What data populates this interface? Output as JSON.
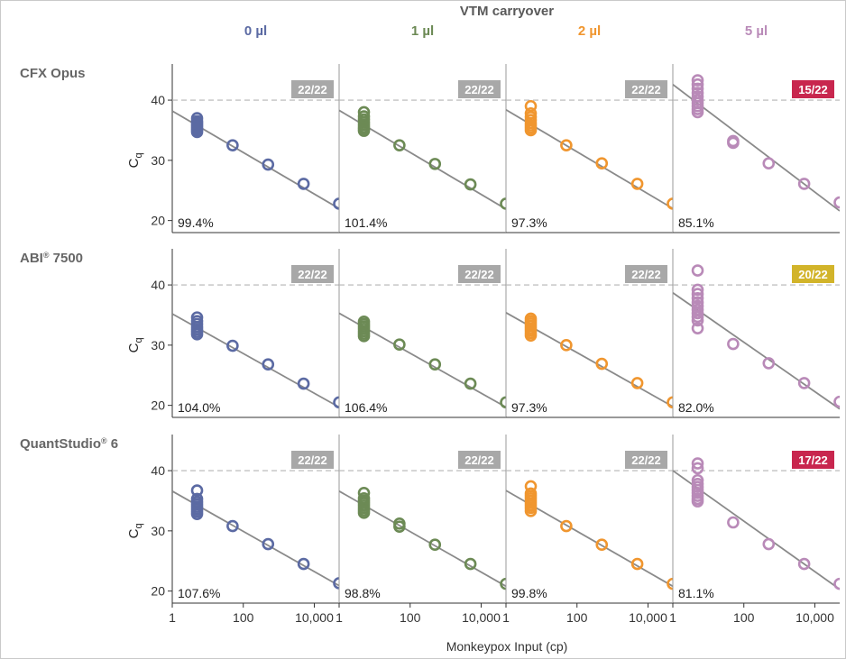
{
  "header": "VTM carryover",
  "x_title": "Monkeypox Input (cp)",
  "y_title_main": "C",
  "y_title_sub": "q",
  "reference_line": 40,
  "columns": [
    {
      "label": "0 µl",
      "color": "#5b6aa3"
    },
    {
      "label": "1 µl",
      "color": "#6c8a55"
    },
    {
      "label": "2 µl",
      "color": "#f0962f"
    },
    {
      "label": "5 µl",
      "color": "#b98ab8"
    }
  ],
  "rows": [
    {
      "label": "CFX Opus",
      "sup": ""
    },
    {
      "label": "ABI",
      "sup": "®",
      "label_suffix": " 7500"
    },
    {
      "label": "QuantStudio",
      "sup": "®",
      "label_suffix": " 6"
    }
  ],
  "badge_colors": {
    "pass": "#a8a8a8",
    "warn": "#d2b42a",
    "fail": "#c8264e"
  },
  "chart_data": {
    "type": "scatter",
    "x_scale": "log10",
    "xlim": [
      1,
      50000
    ],
    "ylim": [
      18,
      46
    ],
    "x_ticks": [
      1,
      100,
      10000
    ],
    "x_tick_labels": [
      "1",
      "100",
      "10,000"
    ],
    "y_ticks": [
      20,
      30,
      40
    ],
    "grid": false,
    "panels": [
      {
        "row": 0,
        "col": 0,
        "efficiency": "99.4%",
        "badge": "22/22",
        "badge_status": "pass",
        "fit": [
          38.2,
          22.0
        ],
        "x": [
          5,
          5,
          5,
          5,
          5,
          5,
          5,
          5,
          50,
          500,
          5000,
          50000
        ],
        "y": [
          37,
          36.5,
          36.2,
          35.9,
          35.6,
          35.3,
          35,
          34.7,
          32.5,
          29.3,
          26.1,
          22.8
        ]
      },
      {
        "row": 0,
        "col": 1,
        "efficiency": "101.4%",
        "badge": "22/22",
        "badge_status": "pass",
        "fit": [
          38.3,
          21.9
        ],
        "x": [
          5,
          5,
          5,
          5,
          5,
          5,
          5,
          5,
          50,
          500,
          5000,
          50000
        ],
        "y": [
          38,
          37.3,
          36.8,
          36.3,
          35.9,
          35.5,
          35.2,
          34.9,
          32.5,
          29.4,
          26,
          22.8
        ]
      },
      {
        "row": 0,
        "col": 2,
        "efficiency": "97.3%",
        "badge": "22/22",
        "badge_status": "pass",
        "fit": [
          38.4,
          22.0
        ],
        "x": [
          5,
          5,
          5,
          5,
          5,
          5,
          5,
          5,
          50,
          500,
          5000,
          50000
        ],
        "y": [
          39,
          37.8,
          37.2,
          36.7,
          36.2,
          35.8,
          35.4,
          35,
          32.5,
          29.5,
          26.1,
          22.8
        ]
      },
      {
        "row": 0,
        "col": 3,
        "efficiency": "85.1%",
        "badge": "15/22",
        "badge_status": "fail",
        "fit": [
          42.6,
          21.6
        ],
        "x": [
          5,
          5,
          5,
          5,
          5,
          5,
          5,
          5,
          5,
          5,
          50,
          50,
          500,
          5000,
          50000
        ],
        "y": [
          43.3,
          42.6,
          41.9,
          41.2,
          40.6,
          40,
          39.5,
          39,
          38.5,
          38,
          33.2,
          32.9,
          29.5,
          26.1,
          23
        ]
      },
      {
        "row": 1,
        "col": 0,
        "efficiency": "104.0%",
        "badge": "22/22",
        "badge_status": "pass",
        "fit": [
          35.2,
          19.7
        ],
        "x": [
          5,
          5,
          5,
          5,
          5,
          5,
          5,
          50,
          500,
          5000,
          50000
        ],
        "y": [
          34.6,
          34,
          33.5,
          33,
          32.6,
          32.2,
          31.8,
          29.9,
          26.8,
          23.6,
          20.5
        ]
      },
      {
        "row": 1,
        "col": 1,
        "efficiency": "106.4%",
        "badge": "22/22",
        "badge_status": "pass",
        "fit": [
          35.3,
          19.7
        ],
        "x": [
          5,
          5,
          5,
          5,
          5,
          5,
          5,
          50,
          500,
          5000,
          50000
        ],
        "y": [
          33.9,
          33.5,
          33.1,
          32.7,
          32.3,
          31.9,
          31.5,
          30.1,
          26.8,
          23.6,
          20.5
        ]
      },
      {
        "row": 1,
        "col": 2,
        "efficiency": "97.3%",
        "badge": "22/22",
        "badge_status": "pass",
        "fit": [
          35.4,
          19.8
        ],
        "x": [
          5,
          5,
          5,
          5,
          5,
          5,
          5,
          5,
          50,
          500,
          5000,
          50000
        ],
        "y": [
          34.4,
          34,
          33.6,
          33.2,
          32.8,
          32.4,
          32,
          31.6,
          30,
          26.9,
          23.7,
          20.5
        ]
      },
      {
        "row": 1,
        "col": 3,
        "efficiency": "82.0%",
        "badge": "20/22",
        "badge_status": "warn",
        "fit": [
          38.7,
          19.4
        ],
        "x": [
          5,
          5,
          5,
          5,
          5,
          5,
          5,
          5,
          5,
          5,
          5,
          50,
          500,
          5000,
          50000
        ],
        "y": [
          42.4,
          39.2,
          38.5,
          37.8,
          37.1,
          36.5,
          35.9,
          35.3,
          34.7,
          34.1,
          32.8,
          30.2,
          27,
          23.7,
          20.6
        ]
      },
      {
        "row": 2,
        "col": 0,
        "efficiency": "107.6%",
        "badge": "22/22",
        "badge_status": "pass",
        "fit": [
          36.6,
          20.9
        ],
        "x": [
          5,
          5,
          5,
          5,
          5,
          5,
          5,
          5,
          50,
          500,
          5000,
          50000
        ],
        "y": [
          36.7,
          35.3,
          34.8,
          34.4,
          34,
          33.6,
          33.2,
          32.8,
          30.8,
          27.8,
          24.5,
          21.3
        ]
      },
      {
        "row": 2,
        "col": 1,
        "efficiency": "98.8%",
        "badge": "22/22",
        "badge_status": "pass",
        "fit": [
          36.6,
          20.8
        ],
        "x": [
          5,
          5,
          5,
          5,
          5,
          5,
          5,
          5,
          50,
          50,
          500,
          5000,
          50000
        ],
        "y": [
          36.3,
          35.4,
          35,
          34.6,
          34.2,
          33.8,
          33.4,
          33,
          31.2,
          30.7,
          27.7,
          24.5,
          21.2
        ]
      },
      {
        "row": 2,
        "col": 2,
        "efficiency": "99.8%",
        "badge": "22/22",
        "badge_status": "pass",
        "fit": [
          36.7,
          20.8
        ],
        "x": [
          5,
          5,
          5,
          5,
          5,
          5,
          5,
          5,
          5,
          50,
          500,
          5000,
          50000
        ],
        "y": [
          37.4,
          36.2,
          35.8,
          35.4,
          35,
          34.6,
          34.2,
          33.8,
          33.3,
          30.8,
          27.7,
          24.5,
          21.2
        ]
      },
      {
        "row": 2,
        "col": 3,
        "efficiency": "81.1%",
        "badge": "17/22",
        "badge_status": "fail",
        "fit": [
          40.0,
          20.3
        ],
        "x": [
          5,
          5,
          5,
          5,
          5,
          5,
          5,
          5,
          5,
          5,
          50,
          500,
          5000,
          50000
        ],
        "y": [
          41.2,
          40.4,
          38.4,
          37.8,
          37.3,
          36.8,
          36.3,
          35.8,
          35.3,
          34.9,
          31.4,
          27.8,
          24.5,
          21.2
        ]
      }
    ]
  }
}
